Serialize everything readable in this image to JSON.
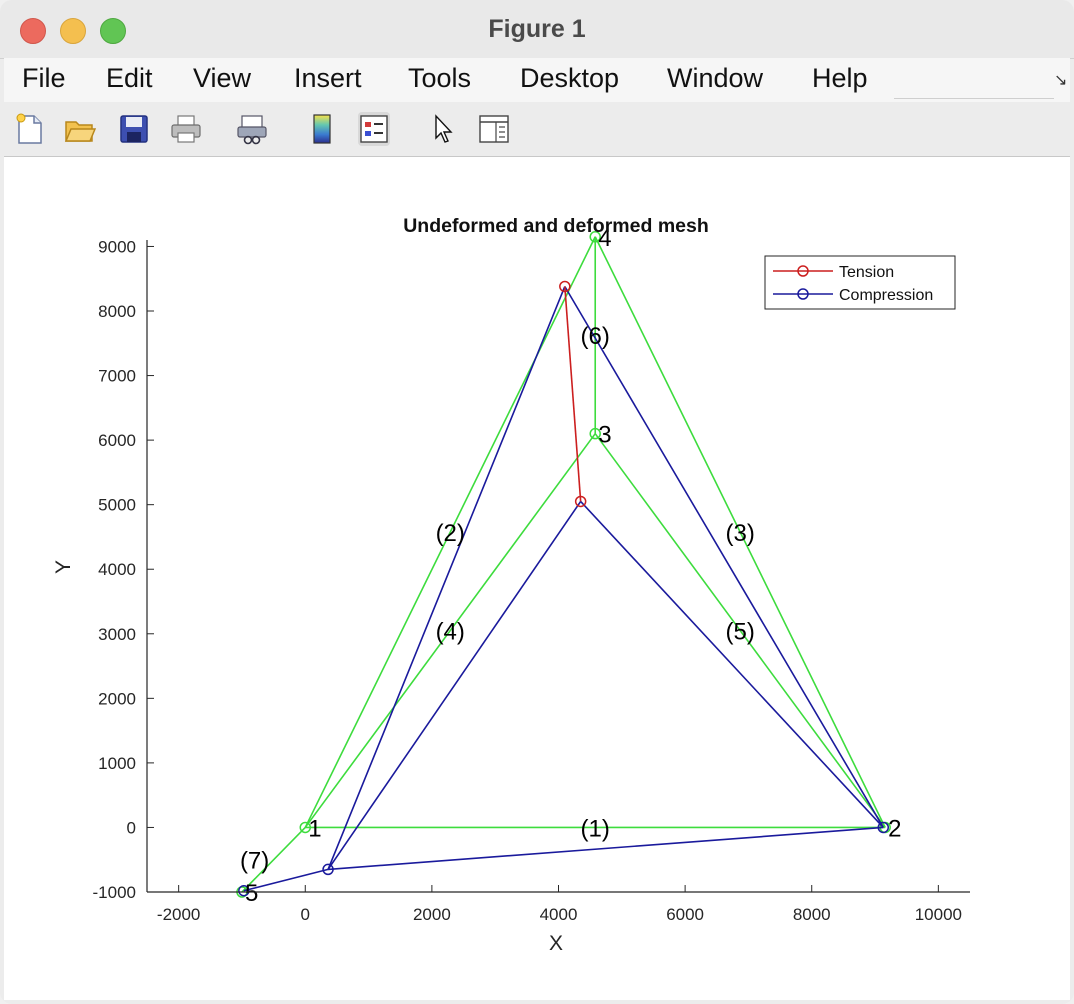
{
  "window": {
    "title": "Figure 1"
  },
  "menu": {
    "items": [
      "File",
      "Edit",
      "View",
      "Insert",
      "Tools",
      "Desktop",
      "Window",
      "Help"
    ]
  },
  "toolbar": {
    "icons": [
      "new-figure-icon",
      "open-file-icon",
      "save-icon",
      "print-icon",
      "link-plot-icon",
      "colorbar-icon",
      "legend-icon",
      "pointer-icon",
      "property-inspector-icon"
    ]
  },
  "chart_data": {
    "type": "line",
    "title": "Undeformed and deformed mesh",
    "xlabel": "X",
    "ylabel": "Y",
    "xlim": [
      -2500,
      10500
    ],
    "ylim": [
      -1000,
      9100
    ],
    "xticks": [
      -2000,
      0,
      2000,
      4000,
      6000,
      8000,
      10000
    ],
    "xtick_labels": [
      "-2000",
      "0",
      "2000",
      "4000",
      "6000",
      "8000",
      "10000"
    ],
    "yticks": [
      -1000,
      0,
      1000,
      2000,
      3000,
      4000,
      5000,
      6000,
      7000,
      8000,
      9000
    ],
    "ytick_labels": [
      "-1000",
      "0",
      "1000",
      "2000",
      "3000",
      "4000",
      "5000",
      "6000",
      "7000",
      "8000",
      "9000"
    ],
    "grid": false,
    "legend": {
      "placement": "top-right",
      "entries": [
        {
          "label": "Tension",
          "color": "#cc1f1f"
        },
        {
          "label": "Compression",
          "color": "#1a1a9c"
        }
      ]
    },
    "colors": {
      "undeformed": "#3ddc3d",
      "tension": "#cc1f1f",
      "compression": "#1a1a9c"
    },
    "undeformed_nodes": [
      {
        "label": "1",
        "x": 0,
        "y": 0
      },
      {
        "label": "2",
        "x": 9160,
        "y": 0
      },
      {
        "label": "3",
        "x": 4580,
        "y": 6100
      },
      {
        "label": "4",
        "x": 4580,
        "y": 9150
      },
      {
        "label": "5",
        "x": -1000,
        "y": -1000
      }
    ],
    "undeformed_elements": [
      {
        "label": "(1)",
        "from": 0,
        "to": 1
      },
      {
        "label": "(2)",
        "from": 0,
        "to": 3
      },
      {
        "label": "(3)",
        "from": 1,
        "to": 3
      },
      {
        "label": "(4)",
        "from": 0,
        "to": 2
      },
      {
        "label": "(5)",
        "from": 1,
        "to": 2
      },
      {
        "label": "(6)",
        "from": 2,
        "to": 3
      },
      {
        "label": "(7)",
        "from": 0,
        "to": 4
      }
    ],
    "deformed_nodes": [
      {
        "x": 360,
        "y": -650
      },
      {
        "x": 9130,
        "y": 0
      },
      {
        "x": 4350,
        "y": 5050
      },
      {
        "x": 4100,
        "y": 8380
      },
      {
        "x": -970,
        "y": -980
      }
    ],
    "deformed_elements": [
      {
        "from": 0,
        "to": 1,
        "state": "compression"
      },
      {
        "from": 0,
        "to": 3,
        "state": "compression"
      },
      {
        "from": 1,
        "to": 3,
        "state": "compression"
      },
      {
        "from": 0,
        "to": 2,
        "state": "compression"
      },
      {
        "from": 1,
        "to": 2,
        "state": "compression"
      },
      {
        "from": 2,
        "to": 3,
        "state": "tension"
      },
      {
        "from": 0,
        "to": 4,
        "state": "compression"
      }
    ],
    "deformed_node_markers": [
      {
        "node": 0,
        "state": "compression"
      },
      {
        "node": 1,
        "state": "compression"
      },
      {
        "node": 2,
        "state": "tension"
      },
      {
        "node": 3,
        "state": "tension"
      },
      {
        "node": 4,
        "state": "compression"
      }
    ]
  }
}
